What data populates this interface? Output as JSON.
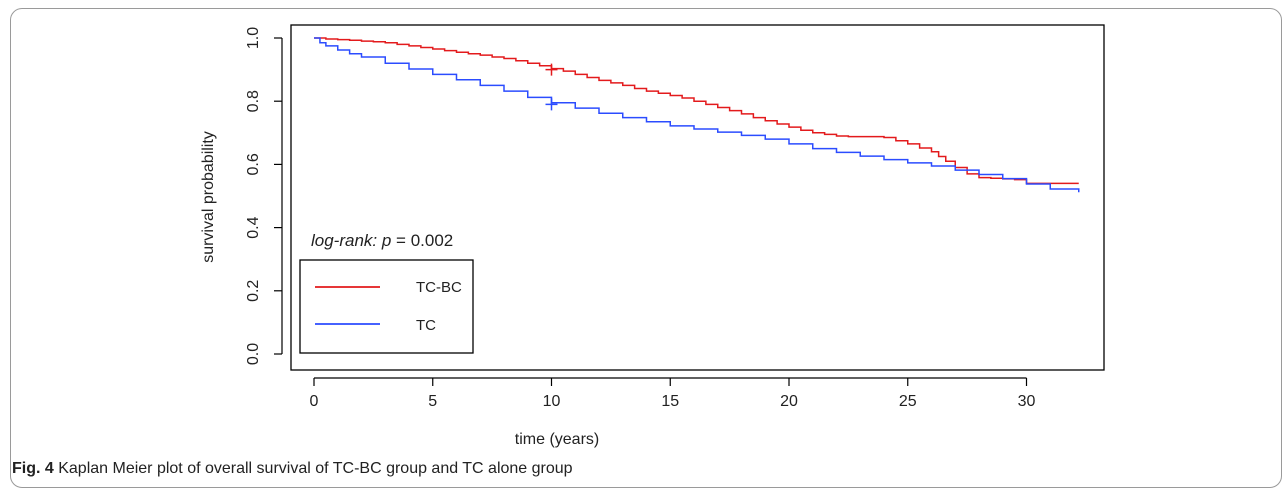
{
  "chart_data": {
    "type": "line",
    "xlabel": "time (years)",
    "ylabel": "survival probability",
    "xlim": [
      0,
      33
    ],
    "ylim": [
      0.0,
      1.0
    ],
    "x_ticks": [
      "0",
      "5",
      "10",
      "15",
      "20",
      "25",
      "30"
    ],
    "y_ticks": [
      "0.0",
      "0.2",
      "0.4",
      "0.6",
      "0.8",
      "1.0"
    ],
    "grid": false,
    "legend_position": "bottom-left",
    "annotation": {
      "italic": "log-rank: p",
      "rest": " = 0.002"
    },
    "series": [
      {
        "name": "TC-BC",
        "color": "#e31a1c",
        "step": true,
        "censor": [
          10,
          0.9
        ],
        "x": [
          0,
          0.5,
          1,
          1.5,
          2,
          2.5,
          3,
          3.5,
          4,
          4.5,
          5,
          5.5,
          6,
          6.5,
          7,
          7.5,
          8,
          8.5,
          9,
          9.5,
          10,
          10.5,
          11,
          11.5,
          12,
          12.5,
          13,
          13.5,
          14,
          14.5,
          15,
          15.5,
          16,
          16.5,
          17,
          17.5,
          18,
          18.5,
          19,
          19.5,
          20,
          20.5,
          21,
          21.5,
          22,
          22.5,
          23,
          23.5,
          24,
          24.5,
          25,
          25.5,
          26,
          26.3,
          26.6,
          27,
          27.5,
          28,
          28.5,
          29,
          29.5,
          30,
          31,
          32.2
        ],
        "y": [
          1.0,
          0.997,
          0.995,
          0.993,
          0.99,
          0.988,
          0.985,
          0.98,
          0.975,
          0.97,
          0.965,
          0.96,
          0.955,
          0.95,
          0.946,
          0.94,
          0.935,
          0.928,
          0.92,
          0.912,
          0.903,
          0.895,
          0.885,
          0.875,
          0.866,
          0.858,
          0.85,
          0.84,
          0.832,
          0.825,
          0.818,
          0.81,
          0.8,
          0.79,
          0.78,
          0.77,
          0.76,
          0.748,
          0.738,
          0.728,
          0.718,
          0.708,
          0.7,
          0.695,
          0.69,
          0.688,
          0.688,
          0.688,
          0.685,
          0.675,
          0.665,
          0.652,
          0.64,
          0.625,
          0.61,
          0.59,
          0.57,
          0.558,
          0.556,
          0.554,
          0.552,
          0.54,
          0.54,
          0.54
        ]
      },
      {
        "name": "TC",
        "color": "#2b4cff",
        "step": true,
        "censor": [
          10,
          0.79
        ],
        "x": [
          0,
          0.25,
          0.5,
          1,
          1.5,
          2,
          3,
          4,
          5,
          6,
          7,
          8,
          9,
          10,
          11,
          12,
          13,
          14,
          15,
          16,
          17,
          18,
          19,
          20,
          21,
          22,
          23,
          24,
          25,
          26,
          27,
          28,
          29,
          30,
          31,
          32.2
        ],
        "y": [
          1.0,
          0.985,
          0.975,
          0.962,
          0.95,
          0.94,
          0.92,
          0.902,
          0.885,
          0.868,
          0.85,
          0.832,
          0.812,
          0.795,
          0.778,
          0.762,
          0.748,
          0.735,
          0.722,
          0.712,
          0.702,
          0.692,
          0.68,
          0.665,
          0.65,
          0.638,
          0.626,
          0.615,
          0.605,
          0.595,
          0.582,
          0.568,
          0.555,
          0.538,
          0.522,
          0.512
        ]
      }
    ]
  },
  "caption": {
    "label": "Fig. 4",
    "text": "  Kaplan Meier plot of overall survival of TC-BC group and TC alone group"
  }
}
